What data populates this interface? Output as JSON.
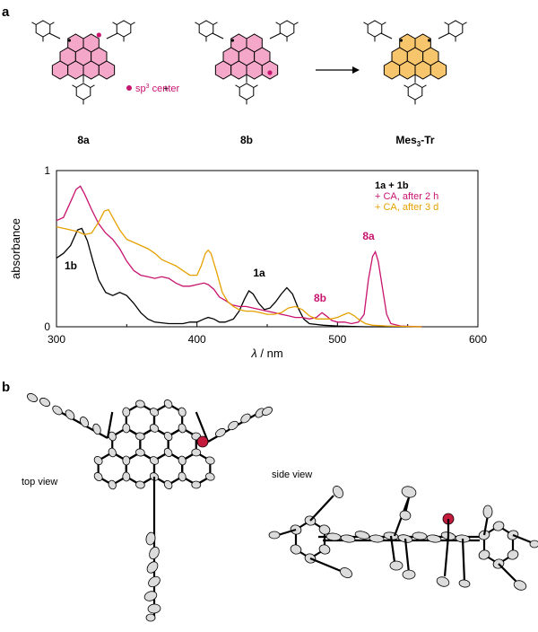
{
  "panel_a": {
    "letter": "a",
    "structures": {
      "left_label": "8a",
      "middle_label": "8b",
      "right_label_main": "Mes",
      "right_label_sub": "3",
      "right_label_tail": "-Tr",
      "plus": "+",
      "legend_dot_text_pre": "sp",
      "legend_dot_text_sup": "3",
      "legend_dot_text_post": " center"
    }
  },
  "panel_b": {
    "letter": "b",
    "top_view_label": "top view",
    "side_view_label": "side view"
  },
  "colors": {
    "pink_fill": "#f4a7c9",
    "orange_fill": "#f7c56b",
    "magenta": "#c8136f",
    "orange": "#e6a100",
    "black": "#000000",
    "red_atom": "#c41a3b"
  },
  "chart_data": {
    "type": "line",
    "xlabel_italic": "λ",
    "xlabel_rest": " / nm",
    "ylabel": "absorbance",
    "xlim": [
      300,
      600
    ],
    "ylim": [
      0,
      1
    ],
    "x_ticks": [
      "300",
      "400",
      "500",
      "600"
    ],
    "y_ticks": [
      "0",
      "1"
    ],
    "legend": [
      "1a + 1b",
      "+ CA, after 2 h",
      "+ CA, after 3 d"
    ],
    "annotations": [
      "1b",
      "1a",
      "8b",
      "8a"
    ],
    "series": [
      {
        "name": "1a + 1b",
        "color": "#000000",
        "points": [
          [
            300,
            0.44
          ],
          [
            305,
            0.47
          ],
          [
            310,
            0.52
          ],
          [
            315,
            0.62
          ],
          [
            318,
            0.63
          ],
          [
            322,
            0.55
          ],
          [
            326,
            0.42
          ],
          [
            330,
            0.3
          ],
          [
            335,
            0.22
          ],
          [
            340,
            0.2
          ],
          [
            345,
            0.22
          ],
          [
            350,
            0.2
          ],
          [
            355,
            0.15
          ],
          [
            360,
            0.09
          ],
          [
            365,
            0.05
          ],
          [
            370,
            0.03
          ],
          [
            380,
            0.02
          ],
          [
            390,
            0.02
          ],
          [
            395,
            0.03
          ],
          [
            400,
            0.03
          ],
          [
            405,
            0.05
          ],
          [
            408,
            0.06
          ],
          [
            412,
            0.05
          ],
          [
            416,
            0.03
          ],
          [
            420,
            0.03
          ],
          [
            426,
            0.05
          ],
          [
            430,
            0.1
          ],
          [
            434,
            0.18
          ],
          [
            437,
            0.23
          ],
          [
            440,
            0.21
          ],
          [
            444,
            0.15
          ],
          [
            448,
            0.11
          ],
          [
            452,
            0.12
          ],
          [
            456,
            0.16
          ],
          [
            460,
            0.21
          ],
          [
            464,
            0.25
          ],
          [
            468,
            0.21
          ],
          [
            472,
            0.12
          ],
          [
            476,
            0.05
          ],
          [
            480,
            0.02
          ],
          [
            490,
            0.01
          ],
          [
            500,
            0.005
          ],
          [
            520,
            0.0
          ],
          [
            560,
            0.0
          ]
        ]
      },
      {
        "name": "+ CA, after 2 h",
        "color": "#c8136f",
        "points": [
          [
            300,
            0.68
          ],
          [
            305,
            0.7
          ],
          [
            310,
            0.8
          ],
          [
            314,
            0.88
          ],
          [
            317,
            0.9
          ],
          [
            320,
            0.85
          ],
          [
            325,
            0.75
          ],
          [
            330,
            0.66
          ],
          [
            335,
            0.6
          ],
          [
            340,
            0.56
          ],
          [
            345,
            0.5
          ],
          [
            350,
            0.42
          ],
          [
            355,
            0.36
          ],
          [
            360,
            0.33
          ],
          [
            365,
            0.32
          ],
          [
            370,
            0.31
          ],
          [
            375,
            0.32
          ],
          [
            380,
            0.31
          ],
          [
            385,
            0.28
          ],
          [
            390,
            0.26
          ],
          [
            395,
            0.26
          ],
          [
            400,
            0.27
          ],
          [
            405,
            0.28
          ],
          [
            408,
            0.27
          ],
          [
            412,
            0.24
          ],
          [
            416,
            0.19
          ],
          [
            420,
            0.17
          ],
          [
            425,
            0.14
          ],
          [
            430,
            0.13
          ],
          [
            435,
            0.13
          ],
          [
            440,
            0.12
          ],
          [
            445,
            0.11
          ],
          [
            450,
            0.1
          ],
          [
            455,
            0.09
          ],
          [
            460,
            0.08
          ],
          [
            465,
            0.07
          ],
          [
            470,
            0.06
          ],
          [
            475,
            0.06
          ],
          [
            480,
            0.05
          ],
          [
            485,
            0.06
          ],
          [
            489,
            0.09
          ],
          [
            492,
            0.07
          ],
          [
            496,
            0.04
          ],
          [
            500,
            0.03
          ],
          [
            505,
            0.03
          ],
          [
            510,
            0.02
          ],
          [
            515,
            0.03
          ],
          [
            519,
            0.08
          ],
          [
            522,
            0.3
          ],
          [
            525,
            0.45
          ],
          [
            527,
            0.48
          ],
          [
            529,
            0.42
          ],
          [
            532,
            0.25
          ],
          [
            535,
            0.08
          ],
          [
            538,
            0.02
          ],
          [
            545,
            0.005
          ],
          [
            560,
            0.0
          ]
        ]
      },
      {
        "name": "+ CA, after 3 d",
        "color": "#e6a100",
        "points": [
          [
            300,
            0.64
          ],
          [
            305,
            0.63
          ],
          [
            310,
            0.62
          ],
          [
            315,
            0.61
          ],
          [
            320,
            0.59
          ],
          [
            325,
            0.6
          ],
          [
            330,
            0.67
          ],
          [
            334,
            0.74
          ],
          [
            337,
            0.75
          ],
          [
            340,
            0.7
          ],
          [
            345,
            0.62
          ],
          [
            350,
            0.56
          ],
          [
            355,
            0.54
          ],
          [
            360,
            0.52
          ],
          [
            365,
            0.5
          ],
          [
            370,
            0.47
          ],
          [
            375,
            0.43
          ],
          [
            380,
            0.41
          ],
          [
            385,
            0.39
          ],
          [
            390,
            0.36
          ],
          [
            395,
            0.33
          ],
          [
            400,
            0.33
          ],
          [
            403,
            0.39
          ],
          [
            406,
            0.47
          ],
          [
            408,
            0.49
          ],
          [
            410,
            0.47
          ],
          [
            414,
            0.35
          ],
          [
            418,
            0.22
          ],
          [
            422,
            0.16
          ],
          [
            426,
            0.13
          ],
          [
            430,
            0.11
          ],
          [
            435,
            0.1
          ],
          [
            440,
            0.1
          ],
          [
            445,
            0.09
          ],
          [
            450,
            0.08
          ],
          [
            455,
            0.08
          ],
          [
            460,
            0.09
          ],
          [
            465,
            0.12
          ],
          [
            470,
            0.13
          ],
          [
            475,
            0.11
          ],
          [
            480,
            0.07
          ],
          [
            485,
            0.05
          ],
          [
            490,
            0.05
          ],
          [
            495,
            0.05
          ],
          [
            500,
            0.06
          ],
          [
            505,
            0.08
          ],
          [
            508,
            0.09
          ],
          [
            512,
            0.07
          ],
          [
            516,
            0.04
          ],
          [
            520,
            0.02
          ],
          [
            525,
            0.01
          ],
          [
            535,
            0.005
          ],
          [
            560,
            0.0
          ]
        ]
      }
    ]
  }
}
